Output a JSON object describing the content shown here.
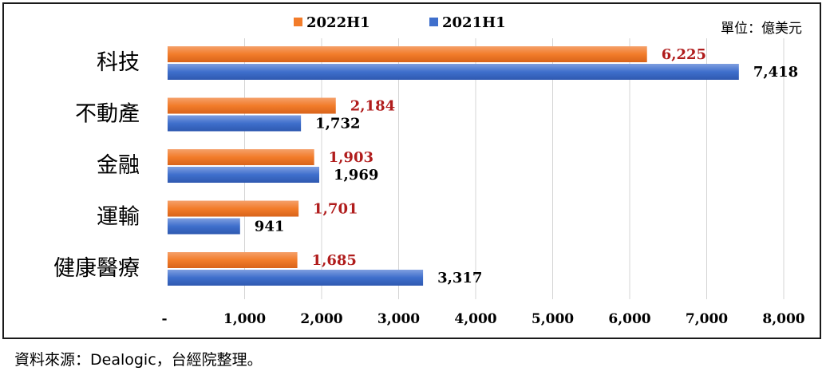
{
  "chart_data": {
    "type": "bar",
    "orientation": "horizontal",
    "categories": [
      "科技",
      "不動產",
      "金融",
      "運輸",
      "健康醫療"
    ],
    "series": [
      {
        "name": "2022H1",
        "values": [
          6225,
          2184,
          1903,
          1701,
          1685
        ],
        "color": "#f27c2a",
        "label_color": "#b01c1c"
      },
      {
        "name": "2021H1",
        "values": [
          7418,
          1732,
          1969,
          941,
          3317
        ],
        "color": "#3f6fcc",
        "label_color": "#000000"
      }
    ],
    "value_labels": {
      "2022H1": [
        "6,225",
        "2,184",
        "1,903",
        "1,701",
        "1,685"
      ],
      "2021H1": [
        "7,418",
        "1,732",
        "1,969",
        "941",
        "3,317"
      ]
    },
    "xlim": [
      0,
      8000
    ],
    "x_ticks": [
      "-",
      "1,000",
      "2,000",
      "3,000",
      "4,000",
      "5,000",
      "6,000",
      "7,000",
      "8,000"
    ],
    "grid": true,
    "legend_position": "top",
    "unit": "單位：億美元"
  },
  "source_note": "資料來源：Dealogic，台經院整理。"
}
